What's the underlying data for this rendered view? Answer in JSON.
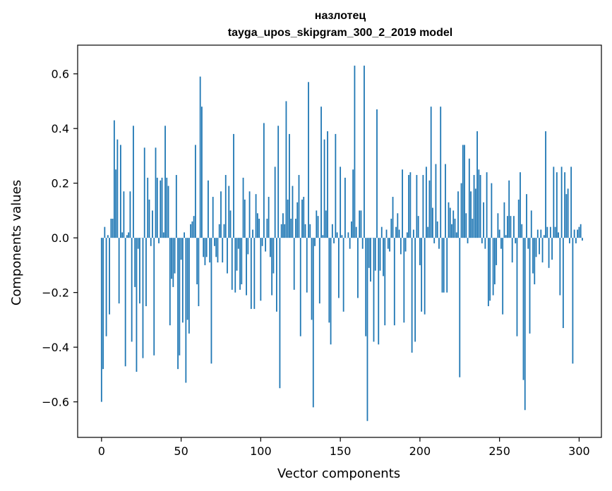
{
  "chart_data": {
    "type": "bar",
    "title": "назлотец",
    "subtitle": "tayga_upos_skipgram_300_2_2019 model",
    "xlabel": "Vector components",
    "ylabel": "Components values",
    "xlim": [
      -15,
      314
    ],
    "ylim": [
      -0.73,
      0.705
    ],
    "xticks": [
      0,
      50,
      100,
      150,
      200,
      250,
      300
    ],
    "xtick_labels": [
      "0",
      "50",
      "100",
      "150",
      "200",
      "250",
      "300"
    ],
    "yticks": [
      -0.6,
      -0.4,
      -0.2,
      0.0,
      0.2,
      0.4,
      0.6
    ],
    "ytick_labels": [
      "−0.6",
      "−0.4",
      "−0.2",
      "0.0",
      "0.2",
      "0.4",
      "0.6"
    ],
    "grid": false,
    "bar_color": "#1f77b4",
    "values": [
      -0.6,
      -0.48,
      0.04,
      -0.36,
      0.01,
      -0.28,
      0.07,
      0.07,
      0.43,
      0.25,
      0.36,
      -0.24,
      0.34,
      0.02,
      0.17,
      -0.47,
      0.01,
      0.02,
      0.17,
      -0.38,
      0.41,
      -0.18,
      -0.49,
      -0.04,
      -0.24,
      0.0,
      -0.44,
      0.33,
      -0.25,
      0.22,
      0.14,
      -0.03,
      0.1,
      -0.43,
      0.33,
      0.22,
      -0.02,
      0.21,
      0.22,
      0.02,
      0.41,
      0.22,
      0.19,
      -0.32,
      -0.15,
      -0.18,
      -0.13,
      0.23,
      -0.48,
      -0.43,
      -0.08,
      -0.31,
      0.02,
      -0.53,
      -0.3,
      -0.35,
      0.05,
      0.06,
      0.08,
      0.34,
      -0.17,
      -0.25,
      0.59,
      0.48,
      -0.07,
      -0.1,
      -0.07,
      0.21,
      -0.09,
      -0.46,
      0.15,
      -0.03,
      -0.07,
      -0.09,
      0.05,
      0.17,
      -0.09,
      0.05,
      0.23,
      -0.13,
      0.19,
      0.1,
      -0.19,
      0.38,
      -0.2,
      -0.12,
      -0.04,
      -0.19,
      -0.17,
      0.22,
      0.14,
      -0.21,
      -0.06,
      0.17,
      -0.26,
      0.03,
      -0.26,
      0.16,
      0.09,
      0.07,
      -0.23,
      -0.03,
      0.42,
      -0.05,
      0.07,
      0.15,
      -0.07,
      -0.21,
      -0.13,
      0.26,
      -0.27,
      0.41,
      -0.55,
      0.05,
      0.09,
      0.05,
      0.5,
      0.14,
      0.38,
      0.07,
      0.19,
      -0.19,
      0.07,
      0.13,
      0.23,
      -0.36,
      0.14,
      0.15,
      0.05,
      -0.2,
      0.57,
      0.05,
      -0.3,
      -0.62,
      -0.03,
      0.1,
      0.08,
      -0.24,
      0.48,
      0.01,
      0.36,
      0.1,
      0.39,
      -0.31,
      -0.39,
      0.05,
      -0.02,
      0.38,
      0.02,
      -0.22,
      0.26,
      0.01,
      -0.27,
      0.22,
      0.0,
      0.02,
      -0.04,
      0.06,
      0.25,
      0.63,
      0.04,
      -0.22,
      0.1,
      0.1,
      -0.04,
      0.63,
      -0.36,
      -0.67,
      -0.11,
      -0.16,
      0.0,
      -0.38,
      -0.12,
      0.47,
      -0.39,
      -0.12,
      0.04,
      -0.14,
      -0.32,
      0.03,
      -0.04,
      -0.05,
      0.07,
      0.15,
      -0.32,
      0.04,
      0.09,
      0.03,
      -0.06,
      0.25,
      -0.31,
      -0.05,
      0.02,
      0.23,
      0.24,
      -0.42,
      0.03,
      -0.38,
      0.23,
      0.08,
      -0.1,
      -0.27,
      0.23,
      -0.28,
      0.26,
      0.04,
      0.21,
      0.48,
      0.11,
      -0.02,
      0.27,
      0.06,
      -0.04,
      0.48,
      -0.2,
      -0.2,
      0.27,
      -0.2,
      0.13,
      0.11,
      0.05,
      0.1,
      0.07,
      0.02,
      0.17,
      -0.51,
      0.2,
      0.34,
      0.34,
      0.09,
      -0.02,
      0.29,
      0.17,
      0.07,
      0.23,
      0.18,
      0.39,
      0.25,
      0.23,
      -0.02,
      0.13,
      -0.04,
      0.24,
      -0.25,
      -0.23,
      0.2,
      -0.21,
      -0.17,
      -0.1,
      0.09,
      0.03,
      -0.04,
      -0.28,
      0.13,
      0.01,
      0.08,
      0.21,
      0.08,
      -0.09,
      0.08,
      -0.02,
      -0.36,
      0.14,
      0.24,
      0.05,
      -0.52,
      -0.63,
      0.16,
      -0.04,
      -0.35,
      0.1,
      -0.13,
      -0.17,
      -0.07,
      0.03,
      -0.06,
      0.03,
      -0.09,
      0.01,
      0.39,
      0.04,
      -0.11,
      0.04,
      -0.08,
      0.26,
      0.04,
      0.24,
      0.02,
      -0.21,
      0.26,
      -0.33,
      0.24,
      0.16,
      0.18,
      -0.02,
      0.26,
      -0.46,
      0.03,
      -0.02,
      0.03,
      0.04,
      0.05,
      -0.01
    ]
  }
}
